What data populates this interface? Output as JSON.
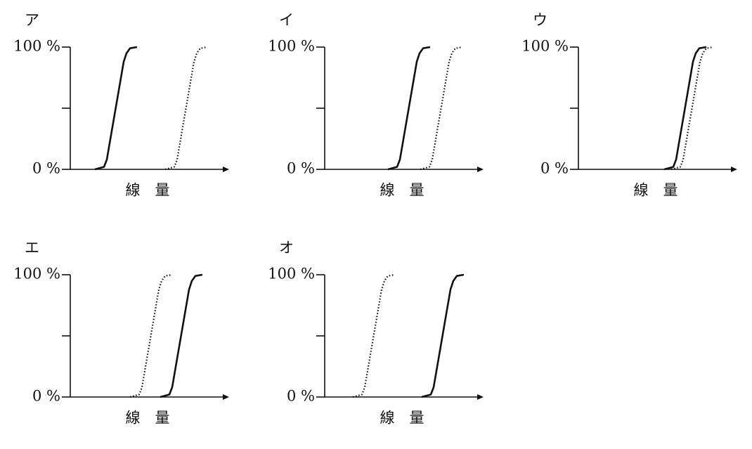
{
  "chart_data": [
    {
      "type": "line",
      "title": "ア",
      "xlabel": "線　量",
      "xlim": [
        0,
        22
      ],
      "ylim": [
        0,
        100
      ],
      "yticks": [
        {
          "value": 0,
          "label": "0 %"
        },
        {
          "value": 100,
          "label": "100 %"
        }
      ],
      "minor_yticks": [
        50
      ],
      "series": [
        {
          "style": "solid",
          "color": "#111111",
          "x": [
            3.5,
            4.8,
            5.2,
            7.6,
            8.0,
            8.5,
            9.5
          ],
          "values": [
            0,
            2,
            8,
            88,
            95,
            99,
            100
          ]
        },
        {
          "style": "dotted",
          "color": "#111111",
          "x": [
            13.5,
            14.8,
            15.2,
            17.6,
            18.0,
            18.5,
            19.5
          ],
          "values": [
            0,
            2,
            8,
            88,
            95,
            99,
            100
          ]
        }
      ]
    },
    {
      "type": "line",
      "title": "イ",
      "xlabel": "線　量",
      "xlim": [
        0,
        22
      ],
      "ylim": [
        0,
        100
      ],
      "yticks": [
        {
          "value": 0,
          "label": "0 %"
        },
        {
          "value": 100,
          "label": "100 %"
        }
      ],
      "minor_yticks": [
        50
      ],
      "series": [
        {
          "style": "solid",
          "color": "#111111",
          "x": [
            9.0,
            10.3,
            10.7,
            13.1,
            13.5,
            14.0,
            15.0
          ],
          "values": [
            0,
            2,
            8,
            88,
            95,
            99,
            100
          ]
        },
        {
          "style": "dotted",
          "color": "#111111",
          "x": [
            13.6,
            14.9,
            15.3,
            17.7,
            18.1,
            18.6,
            19.6
          ],
          "values": [
            0,
            2,
            8,
            88,
            95,
            99,
            100
          ]
        }
      ]
    },
    {
      "type": "line",
      "title": "ウ",
      "xlabel": "線　量",
      "xlim": [
        0,
        22
      ],
      "ylim": [
        0,
        100
      ],
      "yticks": [
        {
          "value": 0,
          "label": "0 %"
        },
        {
          "value": 100,
          "label": "100 %"
        }
      ],
      "minor_yticks": [
        50
      ],
      "series": [
        {
          "style": "solid",
          "color": "#111111",
          "x": [
            12.2,
            13.5,
            13.9,
            16.3,
            16.7,
            17.2,
            18.2
          ],
          "values": [
            0,
            2,
            8,
            88,
            95,
            99,
            100
          ]
        },
        {
          "style": "dotted",
          "color": "#111111",
          "x": [
            13.2,
            14.5,
            14.9,
            17.3,
            17.7,
            18.2,
            19.2
          ],
          "values": [
            0,
            2,
            8,
            88,
            95,
            99,
            100
          ]
        }
      ]
    },
    {
      "type": "line",
      "title": "エ",
      "xlabel": "線　量",
      "xlim": [
        0,
        22
      ],
      "ylim": [
        0,
        100
      ],
      "yticks": [
        {
          "value": 0,
          "label": "0 %"
        },
        {
          "value": 100,
          "label": "100 %"
        }
      ],
      "minor_yticks": [
        50
      ],
      "series": [
        {
          "style": "solid",
          "color": "#111111",
          "x": [
            12.8,
            14.1,
            14.5,
            16.9,
            17.3,
            17.8,
            18.8
          ],
          "values": [
            0,
            2,
            8,
            88,
            95,
            99,
            100
          ]
        },
        {
          "style": "dotted",
          "color": "#111111",
          "x": [
            8.5,
            9.8,
            10.2,
            12.6,
            13.0,
            13.5,
            14.5
          ],
          "values": [
            0,
            2,
            8,
            88,
            95,
            99,
            100
          ]
        }
      ]
    },
    {
      "type": "line",
      "title": "オ",
      "xlabel": "線　量",
      "xlim": [
        0,
        22
      ],
      "ylim": [
        0,
        100
      ],
      "yticks": [
        {
          "value": 0,
          "label": "0 %"
        },
        {
          "value": 100,
          "label": "100 %"
        }
      ],
      "minor_yticks": [
        50
      ],
      "series": [
        {
          "style": "solid",
          "color": "#111111",
          "x": [
            13.8,
            15.1,
            15.5,
            17.9,
            18.3,
            18.8,
            19.8
          ],
          "values": [
            0,
            2,
            8,
            88,
            95,
            99,
            100
          ]
        },
        {
          "style": "dotted",
          "color": "#111111",
          "x": [
            4.0,
            5.3,
            5.7,
            8.1,
            8.5,
            9.0,
            10.0
          ],
          "values": [
            0,
            2,
            8,
            88,
            95,
            99,
            100
          ]
        }
      ]
    }
  ]
}
